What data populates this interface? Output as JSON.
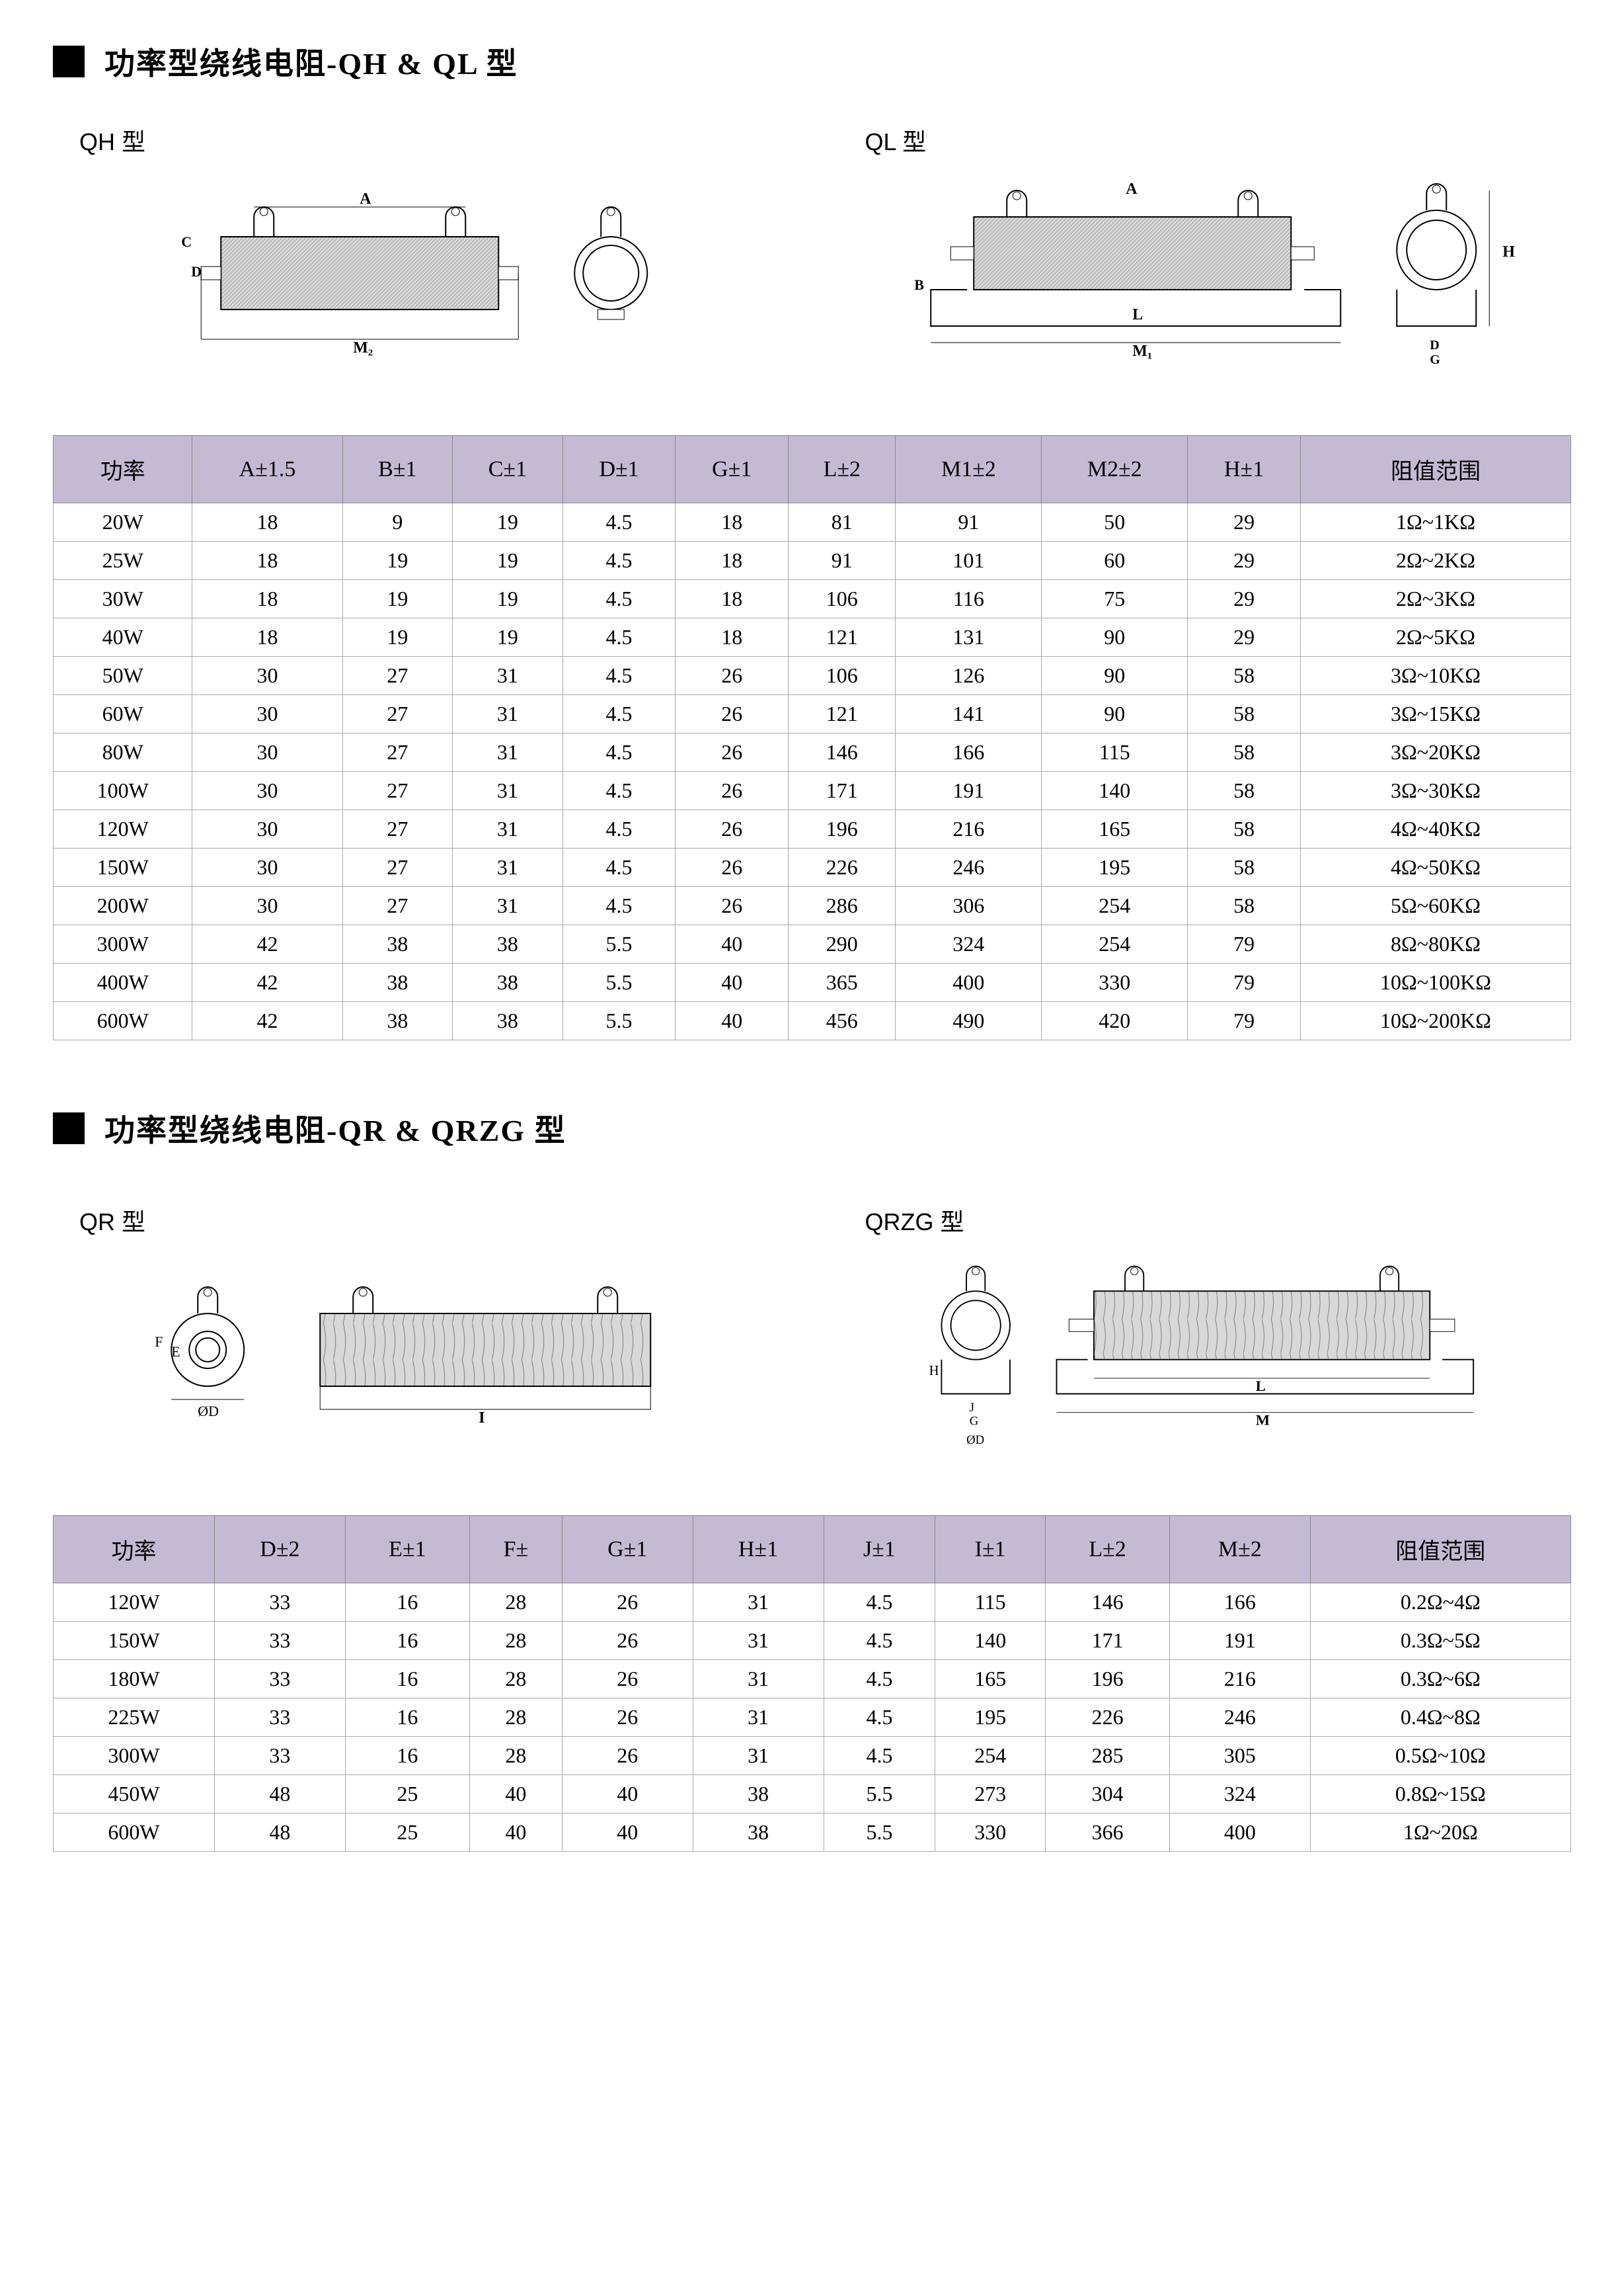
{
  "section1": {
    "heading": "功率型绕线电阻-QH & QL 型",
    "diagram_label_left": "QH 型",
    "diagram_label_right": "QL 型",
    "table": {
      "columns": [
        "功率",
        "A±1.5",
        "B±1",
        "C±1",
        "D±1",
        "G±1",
        "L±2",
        "M1±2",
        "M2±2",
        "H±1",
        "阻值范围"
      ],
      "rows": [
        [
          "20W",
          "18",
          "9",
          "19",
          "4.5",
          "18",
          "81",
          "91",
          "50",
          "29",
          "1Ω~1KΩ"
        ],
        [
          "25W",
          "18",
          "19",
          "19",
          "4.5",
          "18",
          "91",
          "101",
          "60",
          "29",
          "2Ω~2KΩ"
        ],
        [
          "30W",
          "18",
          "19",
          "19",
          "4.5",
          "18",
          "106",
          "116",
          "75",
          "29",
          "2Ω~3KΩ"
        ],
        [
          "40W",
          "18",
          "19",
          "19",
          "4.5",
          "18",
          "121",
          "131",
          "90",
          "29",
          "2Ω~5KΩ"
        ],
        [
          "50W",
          "30",
          "27",
          "31",
          "4.5",
          "26",
          "106",
          "126",
          "90",
          "58",
          "3Ω~10KΩ"
        ],
        [
          "60W",
          "30",
          "27",
          "31",
          "4.5",
          "26",
          "121",
          "141",
          "90",
          "58",
          "3Ω~15KΩ"
        ],
        [
          "80W",
          "30",
          "27",
          "31",
          "4.5",
          "26",
          "146",
          "166",
          "115",
          "58",
          "3Ω~20KΩ"
        ],
        [
          "100W",
          "30",
          "27",
          "31",
          "4.5",
          "26",
          "171",
          "191",
          "140",
          "58",
          "3Ω~30KΩ"
        ],
        [
          "120W",
          "30",
          "27",
          "31",
          "4.5",
          "26",
          "196",
          "216",
          "165",
          "58",
          "4Ω~40KΩ"
        ],
        [
          "150W",
          "30",
          "27",
          "31",
          "4.5",
          "26",
          "226",
          "246",
          "195",
          "58",
          "4Ω~50KΩ"
        ],
        [
          "200W",
          "30",
          "27",
          "31",
          "4.5",
          "26",
          "286",
          "306",
          "254",
          "58",
          "5Ω~60KΩ"
        ],
        [
          "300W",
          "42",
          "38",
          "38",
          "5.5",
          "40",
          "290",
          "324",
          "254",
          "79",
          "8Ω~80KΩ"
        ],
        [
          "400W",
          "42",
          "38",
          "38",
          "5.5",
          "40",
          "365",
          "400",
          "330",
          "79",
          "10Ω~100KΩ"
        ],
        [
          "600W",
          "42",
          "38",
          "38",
          "5.5",
          "40",
          "456",
          "490",
          "420",
          "79",
          "10Ω~200KΩ"
        ]
      ]
    }
  },
  "section2": {
    "heading": "功率型绕线电阻-QR & QRZG 型",
    "diagram_label_left": "QR 型",
    "diagram_label_right": "QRZG 型",
    "table": {
      "columns": [
        "功率",
        "D±2",
        "E±1",
        "F±",
        "G±1",
        "H±1",
        "J±1",
        "I±1",
        "L±2",
        "M±2",
        "阻值范围"
      ],
      "rows": [
        [
          "120W",
          "33",
          "16",
          "28",
          "26",
          "31",
          "4.5",
          "115",
          "146",
          "166",
          "0.2Ω~4Ω"
        ],
        [
          "150W",
          "33",
          "16",
          "28",
          "26",
          "31",
          "4.5",
          "140",
          "171",
          "191",
          "0.3Ω~5Ω"
        ],
        [
          "180W",
          "33",
          "16",
          "28",
          "26",
          "31",
          "4.5",
          "165",
          "196",
          "216",
          "0.3Ω~6Ω"
        ],
        [
          "225W",
          "33",
          "16",
          "28",
          "26",
          "31",
          "4.5",
          "195",
          "226",
          "246",
          "0.4Ω~8Ω"
        ],
        [
          "300W",
          "33",
          "16",
          "28",
          "26",
          "31",
          "4.5",
          "254",
          "285",
          "305",
          "0.5Ω~10Ω"
        ],
        [
          "450W",
          "48",
          "25",
          "40",
          "40",
          "38",
          "5.5",
          "273",
          "304",
          "324",
          "0.8Ω~15Ω"
        ],
        [
          "600W",
          "48",
          "25",
          "40",
          "40",
          "38",
          "5.5",
          "330",
          "366",
          "400",
          "1Ω~20Ω"
        ]
      ]
    }
  },
  "colors": {
    "header_bg": "#c5bad4",
    "border": "#888888",
    "hatch": "#999999"
  }
}
